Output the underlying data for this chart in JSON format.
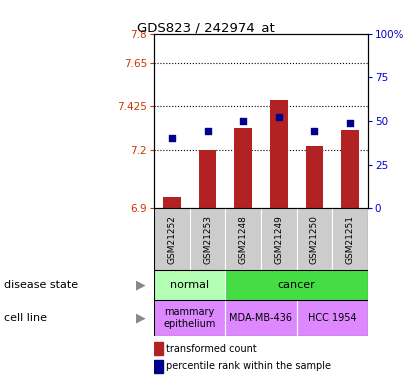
{
  "title": "GDS823 / 242974_at",
  "samples": [
    "GSM21252",
    "GSM21253",
    "GSM21248",
    "GSM21249",
    "GSM21250",
    "GSM21251"
  ],
  "bar_values": [
    6.955,
    7.2,
    7.315,
    7.46,
    7.22,
    7.305
  ],
  "bar_base": 6.9,
  "dot_values_pct": [
    40,
    44,
    50,
    52,
    44,
    49
  ],
  "ylim_left": [
    6.9,
    7.8
  ],
  "ylim_right": [
    0,
    100
  ],
  "yticks_left": [
    6.9,
    7.2,
    7.425,
    7.65,
    7.8
  ],
  "ytick_labels_left": [
    "6.9",
    "7.2",
    "7.425",
    "7.65",
    "7.8"
  ],
  "yticks_right": [
    0,
    25,
    50,
    75,
    100
  ],
  "ytick_labels_right": [
    "0",
    "25",
    "50",
    "75",
    "100%"
  ],
  "hlines": [
    7.2,
    7.425,
    7.65
  ],
  "bar_color": "#b22222",
  "dot_color": "#00008b",
  "normal_color": "#b3ffb3",
  "cancer_color": "#44dd44",
  "cell_line_color": "#dd88ff",
  "sample_bg_color": "#cccccc",
  "legend_bar_color": "#b22222",
  "legend_dot_color": "#00008b",
  "disease_groups": [
    {
      "label": "normal",
      "start": 0,
      "end": 2,
      "color": "#b3ffb3"
    },
    {
      "label": "cancer",
      "start": 2,
      "end": 6,
      "color": "#44dd44"
    }
  ],
  "cell_groups": [
    {
      "label": "mammary\nepithelium",
      "start": 0,
      "end": 2,
      "color": "#dd88ff"
    },
    {
      "label": "MDA-MB-436",
      "start": 2,
      "end": 4,
      "color": "#dd88ff"
    },
    {
      "label": "HCC 1954",
      "start": 4,
      "end": 6,
      "color": "#dd88ff"
    }
  ]
}
